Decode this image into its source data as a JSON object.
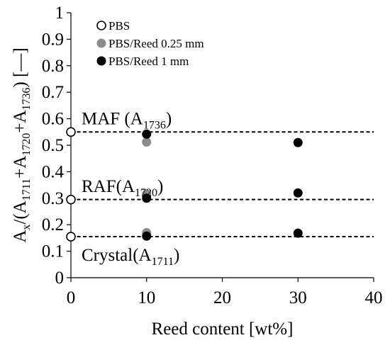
{
  "chart_data": {
    "type": "scatter",
    "xlabel": "Reed content [wt%]",
    "ylabel": {
      "prefix": "A",
      "prefix_sub": "x",
      "mid1": "/(A",
      "sub1": "1711",
      "mid2": "+A",
      "sub2": "1720",
      "mid3": "+A",
      "sub3": "1736",
      "suffix": ") [—]"
    },
    "xlim": [
      0,
      40
    ],
    "ylim": [
      0,
      1
    ],
    "x_ticks": [
      "0",
      "10",
      "20",
      "30",
      "40"
    ],
    "y_ticks": [
      "0",
      "0.1",
      "0.2",
      "0.3",
      "0.4",
      "0.5",
      "0.6",
      "0.7",
      "0.8",
      "0.9",
      "1"
    ],
    "grid": false,
    "legend_position": "top-left",
    "series": [
      {
        "name": "PBS",
        "marker": "open",
        "color": "#000000",
        "points": [
          {
            "x": 0,
            "y": 0.55
          },
          {
            "x": 0,
            "y": 0.295
          },
          {
            "x": 0,
            "y": 0.155
          }
        ]
      },
      {
        "name": "PBS/Reed 0.25 mm",
        "marker": "filled",
        "color": "#8c8c8c",
        "points": [
          {
            "x": 10,
            "y": 0.512
          },
          {
            "x": 10,
            "y": 0.316
          },
          {
            "x": 10,
            "y": 0.17
          }
        ]
      },
      {
        "name": "PBS/Reed 1 mm",
        "marker": "filled",
        "color": "#000000",
        "points": [
          {
            "x": 10,
            "y": 0.542
          },
          {
            "x": 10,
            "y": 0.3
          },
          {
            "x": 10,
            "y": 0.157
          },
          {
            "x": 30,
            "y": 0.51
          },
          {
            "x": 30,
            "y": 0.32
          },
          {
            "x": 30,
            "y": 0.168
          }
        ]
      }
    ],
    "reference_lines": [
      {
        "y": 0.55,
        "from_x": 0,
        "to_x": 40
      },
      {
        "y": 0.295,
        "from_x": 0,
        "to_x": 40
      },
      {
        "y": 0.155,
        "from_x": 0,
        "to_x": 40
      }
    ],
    "annotations": [
      {
        "text": "MAF (A",
        "sub": "1736",
        "close": ")",
        "anchor_x": 0,
        "anchor_y": 0.6
      },
      {
        "text": "RAF(A",
        "sub": "1720",
        "close": ")",
        "anchor_x": 0,
        "anchor_y": 0.345
      },
      {
        "text": "Crystal(A",
        "sub": "1711",
        "close": ")",
        "anchor_x": 0,
        "anchor_y": 0.085
      }
    ]
  }
}
